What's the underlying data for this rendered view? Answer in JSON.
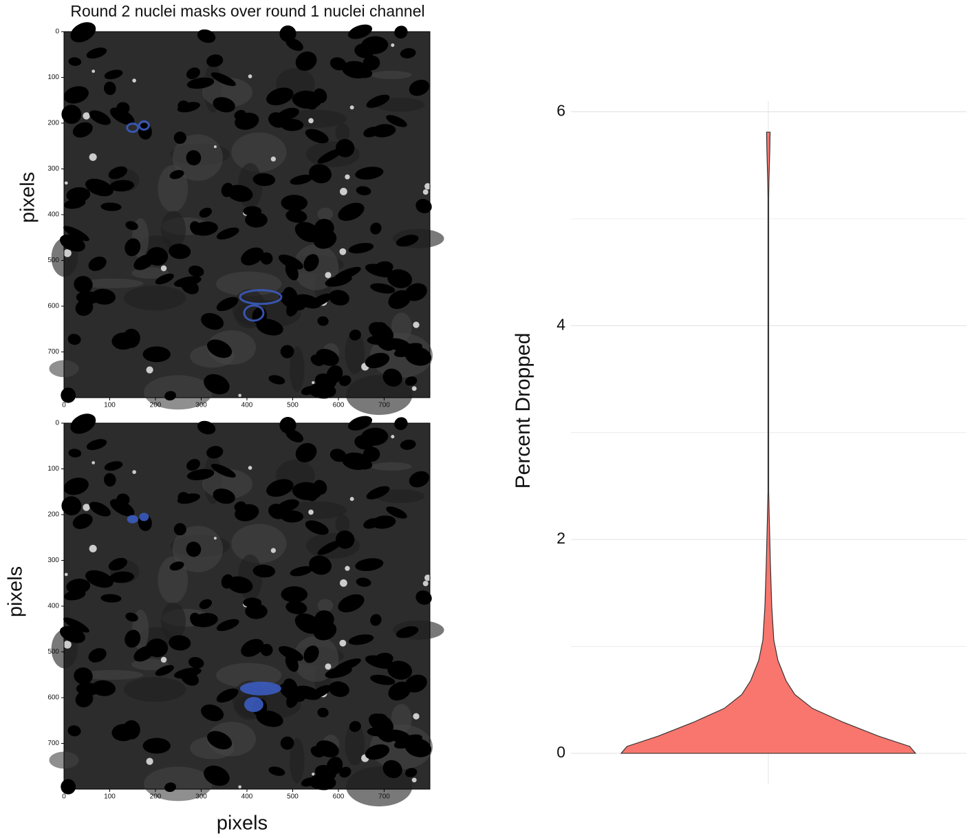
{
  "chart_data": [
    {
      "type": "image",
      "title": "Round 2 nuclei masks over round 1 nuclei channel",
      "ylabel": "pixels",
      "xlim": [
        0,
        800
      ],
      "ylim": [
        800,
        0
      ],
      "xticks": [
        0,
        100,
        200,
        300,
        400,
        500,
        600,
        700
      ],
      "yticks": [
        0,
        100,
        200,
        300,
        400,
        500,
        600,
        700
      ]
    },
    {
      "type": "image",
      "ylabel": "pixels",
      "xlabel": "pixels",
      "xlim": [
        0,
        800
      ],
      "ylim": [
        800,
        0
      ],
      "xticks": [
        0,
        100,
        200,
        300,
        400,
        500,
        600,
        700
      ],
      "yticks": [
        0,
        100,
        200,
        300,
        400,
        500,
        600,
        700
      ]
    },
    {
      "type": "violin",
      "ylabel": "Percent Dropped",
      "color": "#f8766d",
      "ylim": [
        -0.29,
        6.1
      ],
      "yticks": [
        0,
        2,
        4,
        6
      ],
      "yminor": [
        1,
        3,
        5
      ],
      "grid": true,
      "y": [
        0,
        0.065,
        0.16,
        0.29,
        0.42,
        0.55,
        0.68,
        0.87,
        1.06,
        1.38,
        1.77,
        2.16,
        2.45,
        2.6,
        5.2,
        5.35,
        5.5,
        5.65,
        5.81
      ],
      "density": [
        1,
        0.96,
        0.75,
        0.51,
        0.3,
        0.18,
        0.12,
        0.065,
        0.037,
        0.023,
        0.014,
        0.007,
        0.002,
        0.0015,
        0.0015,
        0.004,
        0.007,
        0.01,
        0.012
      ]
    }
  ]
}
